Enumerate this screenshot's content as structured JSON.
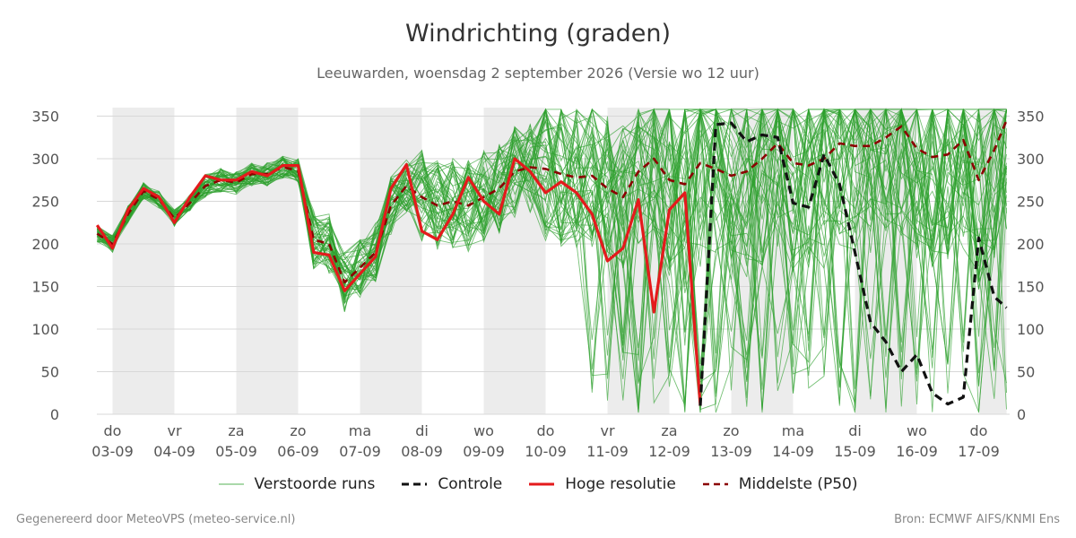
{
  "title": "Windrichting (graden)",
  "subtitle": "Leeuwarden, woensdag  2 september 2026 (Versie wo 12 uur)",
  "footer": {
    "left": "Gegenereerd door MeteoVPS (meteo-service.nl)",
    "right": "Bron: ECMWF AIFS/KNMI Ens"
  },
  "colors": {
    "ensemble": "#2ca02c",
    "control": "#111111",
    "hires": "#e41a1c",
    "median": "#8b0000",
    "weekend_band": "#ececec",
    "grid": "#d8d8d8"
  },
  "chart_data": {
    "type": "line",
    "title": "Windrichting (graden)",
    "ylim": [
      0,
      360
    ],
    "yticks": [
      0,
      50,
      100,
      150,
      200,
      250,
      300,
      350
    ],
    "xlim": [
      -0.25,
      14.45
    ],
    "x_ticks": [
      {
        "day": "do",
        "date": "03-09",
        "x": 0
      },
      {
        "day": "vr",
        "date": "04-09",
        "x": 1
      },
      {
        "day": "za",
        "date": "05-09",
        "x": 2
      },
      {
        "day": "zo",
        "date": "06-09",
        "x": 3
      },
      {
        "day": "ma",
        "date": "07-09",
        "x": 4
      },
      {
        "day": "di",
        "date": "08-09",
        "x": 5
      },
      {
        "day": "wo",
        "date": "09-09",
        "x": 6
      },
      {
        "day": "do",
        "date": "10-09",
        "x": 7
      },
      {
        "day": "vr",
        "date": "11-09",
        "x": 8
      },
      {
        "day": "za",
        "date": "12-09",
        "x": 9
      },
      {
        "day": "zo",
        "date": "13-09",
        "x": 10
      },
      {
        "day": "ma",
        "date": "14-09",
        "x": 11
      },
      {
        "day": "di",
        "date": "15-09",
        "x": 12
      },
      {
        "day": "wo",
        "date": "16-09",
        "x": 13
      },
      {
        "day": "do",
        "date": "17-09",
        "x": 14
      }
    ],
    "shaded_days": [
      [
        0,
        1
      ],
      [
        2,
        3
      ],
      [
        4,
        5
      ],
      [
        6,
        7
      ],
      [
        8,
        9
      ],
      [
        10,
        11
      ],
      [
        12,
        13
      ],
      [
        14,
        14.45
      ]
    ],
    "grid": true,
    "legend": "bottom",
    "legend_labels": {
      "ensemble": "Verstoorde runs",
      "control": "Controle",
      "hires": "Hoge resolutie",
      "median": "Middelste (P50)"
    },
    "series": [
      {
        "name": "Hoge resolutie",
        "x": [
          -0.25,
          0,
          0.25,
          0.5,
          0.75,
          1,
          1.25,
          1.5,
          1.75,
          2,
          2.25,
          2.5,
          2.75,
          3,
          3.25,
          3.5,
          3.75,
          4,
          4.25,
          4.5,
          4.75,
          5,
          5.25,
          5.5,
          5.75,
          6,
          6.25,
          6.5,
          6.75,
          7,
          7.25,
          7.5,
          7.75,
          8,
          8.25,
          8.5,
          8.75,
          9,
          9.25,
          9.5
        ],
        "values": [
          222,
          195,
          240,
          265,
          255,
          225,
          255,
          280,
          275,
          275,
          285,
          280,
          292,
          292,
          190,
          187,
          145,
          165,
          185,
          265,
          293,
          215,
          205,
          235,
          278,
          250,
          235,
          300,
          285,
          260,
          273,
          260,
          235,
          180,
          195,
          252,
          120,
          240,
          260,
          10
        ]
      },
      {
        "name": "Controle",
        "x": [
          9.5,
          9.75,
          10,
          10.25,
          10.5,
          10.75,
          11,
          11.25,
          11.5,
          11.75,
          12,
          12.25,
          12.5,
          12.75,
          13,
          13.25,
          13.5,
          13.75,
          14,
          14.25,
          14.45
        ],
        "values": [
          10,
          340,
          342,
          320,
          328,
          325,
          248,
          243,
          305,
          270,
          190,
          108,
          85,
          50,
          70,
          25,
          12,
          20,
          207,
          138,
          125
        ]
      },
      {
        "name": "Middelste (P50)",
        "x": [
          -0.25,
          0,
          0.25,
          0.5,
          0.75,
          1,
          1.25,
          1.5,
          1.75,
          2,
          2.25,
          2.5,
          2.75,
          3,
          3.25,
          3.5,
          3.75,
          4,
          4.25,
          4.5,
          4.75,
          5,
          5.25,
          5.5,
          5.75,
          6,
          6.25,
          6.5,
          6.75,
          7,
          7.25,
          7.5,
          7.75,
          8,
          8.25,
          8.5,
          8.75,
          9,
          9.25,
          9.5,
          9.75,
          10,
          10.25,
          10.5,
          10.75,
          11,
          11.25,
          11.5,
          11.75,
          12,
          12.25,
          12.5,
          12.75,
          13,
          13.25,
          13.5,
          13.75,
          14,
          14.25,
          14.45
        ],
        "values": [
          212,
          200,
          235,
          262,
          252,
          230,
          248,
          268,
          275,
          272,
          282,
          282,
          290,
          286,
          205,
          200,
          155,
          172,
          190,
          245,
          268,
          255,
          245,
          250,
          245,
          255,
          265,
          285,
          290,
          288,
          282,
          278,
          280,
          265,
          255,
          285,
          300,
          275,
          270,
          295,
          288,
          280,
          285,
          300,
          318,
          295,
          292,
          300,
          318,
          315,
          315,
          325,
          338,
          312,
          302,
          305,
          322,
          275,
          310,
          345
        ]
      }
    ]
  }
}
